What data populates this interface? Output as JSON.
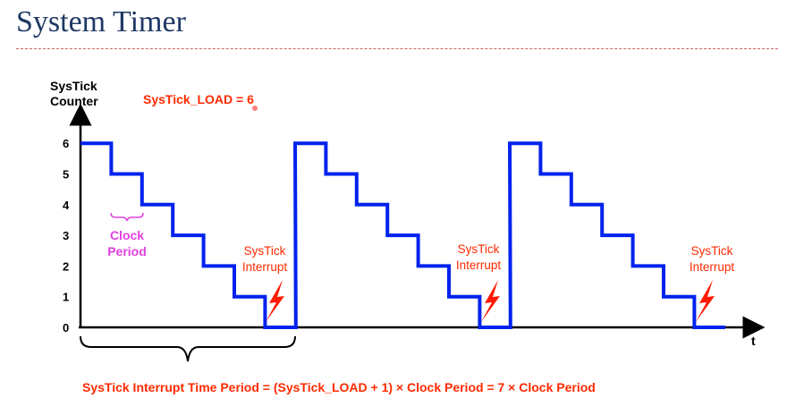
{
  "title": "System Timer",
  "y_axis_label": [
    "SysTick",
    "Counter"
  ],
  "x_axis_label": "t",
  "y_ticks": [
    "0",
    "1",
    "2",
    "3",
    "4",
    "5",
    "6"
  ],
  "load_label": "SysTick_LOAD = 6",
  "clock_period_label": [
    "Clock",
    "Period"
  ],
  "interrupt_label": [
    "SysTick",
    "Interrupt"
  ],
  "formula": "SysTick Interrupt Time Period = (SysTick_LOAD + 1) × Clock Period = 7 × Clock Period",
  "colors": {
    "waveform": "#0022ee",
    "annotation": "#ff2a00",
    "clock_note": "#e040e0",
    "title": "#1f3864"
  },
  "chart_data": {
    "type": "line",
    "step": true,
    "y_range": [
      0,
      6
    ],
    "cycles": 3,
    "counter_sequence": [
      6,
      5,
      4,
      3,
      2,
      1,
      0
    ],
    "interrupt_events": 3
  }
}
